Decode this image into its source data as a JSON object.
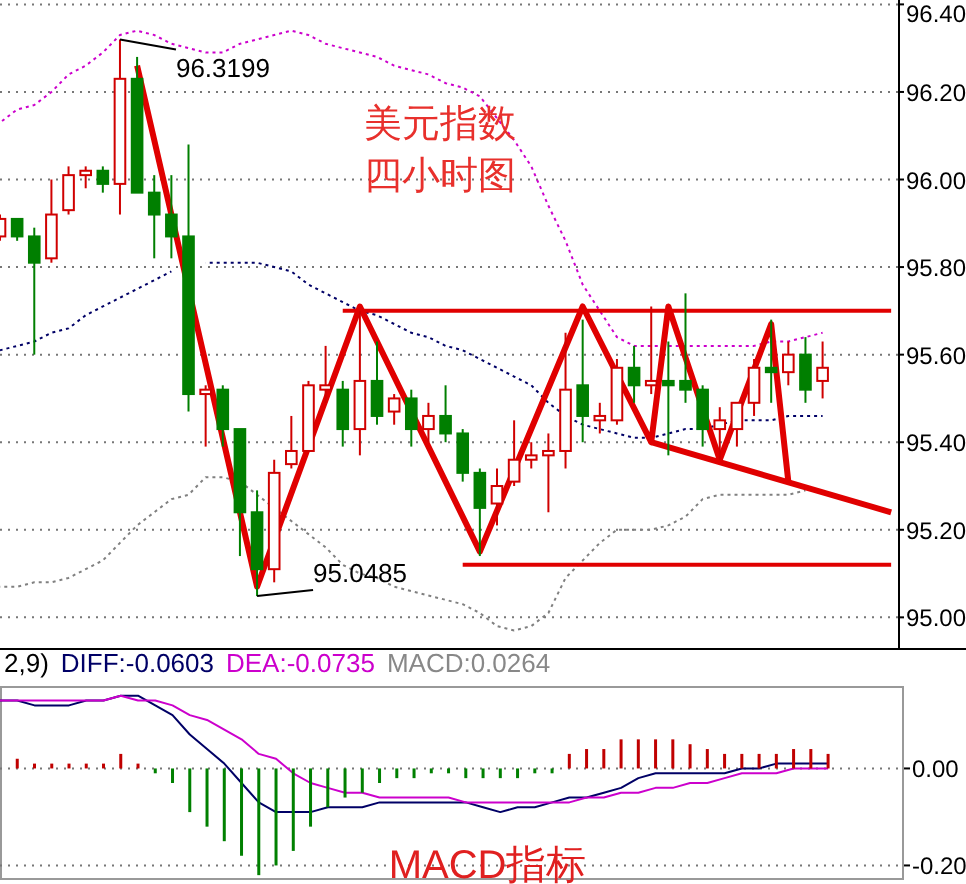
{
  "chart_data": [
    {
      "type": "candlestick",
      "categories": [
        null,
        null,
        null,
        null,
        null,
        null,
        null,
        null,
        null,
        null,
        null,
        null,
        null,
        null,
        null,
        null,
        null,
        null,
        null,
        null,
        null,
        null,
        null,
        null,
        null,
        null,
        null,
        null,
        null,
        null,
        null,
        null,
        null,
        null,
        null,
        null,
        null,
        null,
        null,
        null,
        null,
        null,
        null,
        null,
        null,
        null,
        null,
        null,
        null,
        null,
        null,
        null,
        null
      ],
      "ohlc": [
        [
          95.87,
          95.92,
          95.86,
          95.91
        ],
        [
          95.91,
          95.91,
          95.86,
          95.87
        ],
        [
          95.87,
          95.89,
          95.6,
          95.81
        ],
        [
          95.82,
          96.0,
          95.81,
          95.92
        ],
        [
          95.93,
          96.03,
          95.92,
          96.01
        ],
        [
          96.01,
          96.03,
          95.98,
          96.02
        ],
        [
          96.02,
          96.03,
          95.97,
          95.99
        ],
        [
          95.99,
          96.3199,
          95.92,
          96.23
        ],
        [
          96.23,
          96.28,
          95.97,
          95.97
        ],
        [
          95.97,
          96.01,
          95.82,
          95.92
        ],
        [
          95.92,
          96.01,
          95.82,
          95.87
        ],
        [
          95.87,
          96.08,
          95.47,
          95.51
        ],
        [
          95.51,
          95.53,
          95.39,
          95.52
        ],
        [
          95.52,
          95.53,
          95.39,
          95.43
        ],
        [
          95.43,
          95.43,
          95.14,
          95.24
        ],
        [
          95.24,
          95.29,
          95.0485,
          95.11
        ],
        [
          95.11,
          95.36,
          95.08,
          95.33
        ],
        [
          95.35,
          95.46,
          95.34,
          95.38
        ],
        [
          95.38,
          95.54,
          95.38,
          95.53
        ],
        [
          95.52,
          95.62,
          95.49,
          95.53
        ],
        [
          95.52,
          95.54,
          95.39,
          95.43
        ],
        [
          95.43,
          95.7,
          95.37,
          95.54
        ],
        [
          95.54,
          95.63,
          95.44,
          95.46
        ],
        [
          95.47,
          95.51,
          95.44,
          95.5
        ],
        [
          95.5,
          95.52,
          95.39,
          95.43
        ],
        [
          95.43,
          95.49,
          95.4,
          95.46
        ],
        [
          95.46,
          95.53,
          95.4,
          95.42
        ],
        [
          95.42,
          95.43,
          95.31,
          95.33
        ],
        [
          95.33,
          95.34,
          95.14,
          95.25
        ],
        [
          95.26,
          95.34,
          95.21,
          95.3
        ],
        [
          95.31,
          95.45,
          95.3,
          95.36
        ],
        [
          95.36,
          95.4,
          95.34,
          95.37
        ],
        [
          95.37,
          95.42,
          95.24,
          95.38
        ],
        [
          95.38,
          95.65,
          95.34,
          95.52
        ],
        [
          95.53,
          95.68,
          95.4,
          95.46
        ],
        [
          95.45,
          95.49,
          95.42,
          95.46
        ],
        [
          95.45,
          95.59,
          95.44,
          95.57
        ],
        [
          95.57,
          95.62,
          95.49,
          95.53
        ],
        [
          95.53,
          95.71,
          95.51,
          95.54
        ],
        [
          95.54,
          95.63,
          95.37,
          95.53
        ],
        [
          95.54,
          95.74,
          95.49,
          95.52
        ],
        [
          95.52,
          95.53,
          95.39,
          95.43
        ],
        [
          95.43,
          95.48,
          95.36,
          95.45
        ],
        [
          95.43,
          95.49,
          95.39,
          95.49
        ],
        [
          95.49,
          95.59,
          95.46,
          95.57
        ],
        [
          95.57,
          95.68,
          95.49,
          95.56
        ],
        [
          95.56,
          95.63,
          95.53,
          95.6
        ],
        [
          95.6,
          95.64,
          95.49,
          95.52
        ],
        [
          95.54,
          95.63,
          95.5,
          95.57
        ],
        null,
        null,
        null,
        null
      ],
      "colors": [
        "#d00000",
        "#007f00",
        "#007f00",
        "#d00000",
        "#d00000",
        "#d00000",
        "#007f00",
        "#d00000",
        "#007f00",
        "#007f00",
        "#007f00",
        "#007f00",
        "#d00000",
        "#007f00",
        "#007f00",
        "#007f00",
        "#d00000",
        "#d00000",
        "#d00000",
        "#d00000",
        "#007f00",
        "#d00000",
        "#007f00",
        "#d00000",
        "#007f00",
        "#d00000",
        "#007f00",
        "#007f00",
        "#007f00",
        "#d00000",
        "#d00000",
        "#d00000",
        "#d00000",
        "#d00000",
        "#007f00",
        "#d00000",
        "#d00000",
        "#007f00",
        "#d00000",
        "#007f00",
        "#007f00",
        "#007f00",
        "#d00000",
        "#d00000",
        "#d00000",
        "#007f00",
        "#d00000",
        "#007f00",
        "#d00000",
        null,
        null,
        null,
        null
      ],
      "series": [
        {
          "type": "line",
          "color": "#cc00cc",
          "line_style": "dotted",
          "values": [
            96.13,
            96.16,
            96.17,
            96.2,
            96.24,
            96.26,
            96.29,
            96.33,
            96.34,
            96.33,
            96.31,
            96.3,
            96.29,
            96.29,
            96.31,
            96.32,
            96.33,
            96.34,
            96.33,
            96.31,
            96.3,
            96.29,
            96.28,
            96.26,
            96.25,
            96.24,
            96.22,
            96.21,
            96.19,
            96.14,
            96.09,
            96.03,
            95.94,
            95.86,
            95.76,
            95.7,
            95.64,
            95.62,
            95.62,
            95.62,
            95.62,
            95.62,
            95.62,
            95.62,
            95.62,
            95.63,
            95.63,
            95.64,
            95.65,
            null,
            null,
            null,
            null
          ]
        },
        {
          "type": "line",
          "color": "#000066",
          "line_style": "dotted",
          "values": [
            95.61,
            95.62,
            95.63,
            95.65,
            95.66,
            95.69,
            95.71,
            95.73,
            95.75,
            95.77,
            95.79,
            null,
            95.81,
            95.81,
            95.81,
            95.81,
            95.8,
            95.79,
            95.76,
            95.74,
            95.72,
            95.7,
            95.69,
            95.67,
            95.65,
            95.64,
            95.62,
            95.61,
            95.59,
            95.57,
            95.55,
            95.53,
            95.49,
            95.46,
            95.44,
            95.43,
            95.42,
            95.41,
            95.41,
            95.42,
            95.43,
            95.43,
            95.44,
            95.45,
            95.45,
            95.45,
            95.46,
            95.46,
            95.46,
            null,
            null,
            null,
            null
          ]
        },
        {
          "type": "line",
          "color": "#808080",
          "line_style": "dotted",
          "values": [
            95.07,
            95.07,
            95.08,
            95.08,
            95.09,
            95.11,
            95.13,
            95.17,
            95.21,
            95.24,
            95.27,
            95.28,
            95.32,
            95.32,
            95.31,
            95.28,
            95.25,
            95.22,
            95.19,
            95.16,
            95.12,
            95.1,
            95.09,
            95.07,
            95.06,
            95.05,
            95.04,
            95.03,
            95.01,
            94.98,
            94.97,
            94.98,
            95.01,
            95.09,
            95.13,
            95.17,
            95.2,
            95.2,
            95.2,
            95.21,
            95.23,
            95.27,
            95.28,
            95.28,
            95.28,
            95.28,
            95.28,
            95.29,
            null,
            null,
            null,
            null,
            null
          ]
        },
        {
          "type": "line",
          "color": "#e00000",
          "line_style": "solid",
          "values": [
            null,
            null,
            null,
            null,
            null,
            null,
            null,
            null,
            null,
            null,
            null,
            null,
            null,
            null,
            null,
            null,
            null,
            null,
            null,
            null,
            95.7,
            95.7,
            95.7,
            95.7,
            95.7,
            95.7,
            95.7,
            95.7,
            95.7,
            95.7,
            95.7,
            95.7,
            95.7,
            95.7,
            95.7,
            95.7,
            95.7,
            95.7,
            95.7,
            95.7,
            95.7,
            95.7,
            95.7,
            95.7,
            95.7,
            95.7,
            95.7,
            95.7,
            95.7,
            95.7,
            95.7,
            95.7,
            95.7
          ]
        },
        {
          "type": "line",
          "color": "#e00000",
          "line_style": "solid",
          "values": [
            null,
            null,
            null,
            null,
            null,
            null,
            null,
            null,
            null,
            null,
            null,
            null,
            null,
            null,
            null,
            null,
            null,
            null,
            null,
            null,
            null,
            null,
            null,
            null,
            null,
            null,
            null,
            95.12,
            95.12,
            95.12,
            95.12,
            95.12,
            95.12,
            95.12,
            95.12,
            95.12,
            95.12,
            95.12,
            95.12,
            95.12,
            95.12,
            95.12,
            95.12,
            95.12,
            95.12,
            95.12,
            95.12,
            95.12,
            95.12,
            95.12,
            95.12,
            95.12,
            95.12
          ]
        },
        {
          "type": "line",
          "color": "#e00000",
          "line_style": "solid",
          "values": [
            null,
            null,
            null,
            null,
            null,
            null,
            null,
            null,
            96.26,
            null,
            null,
            null,
            null,
            null,
            null,
            95.07,
            null,
            null,
            null,
            null,
            null,
            95.71,
            null,
            null,
            null,
            null,
            null,
            null,
            95.15,
            null,
            null,
            null,
            null,
            null,
            95.71,
            null,
            null,
            null,
            95.4,
            95.71,
            null,
            null,
            95.36,
            null,
            null,
            95.67,
            95.31,
            null,
            null,
            null,
            null,
            null,
            null
          ]
        },
        {
          "type": "line",
          "color": "#e00000",
          "line_style": "solid",
          "values": [
            null,
            null,
            null,
            null,
            null,
            null,
            null,
            null,
            null,
            null,
            null,
            null,
            null,
            null,
            null,
            null,
            null,
            null,
            null,
            null,
            null,
            null,
            null,
            null,
            null,
            null,
            null,
            null,
            null,
            null,
            null,
            null,
            null,
            null,
            null,
            null,
            null,
            null,
            95.4,
            null,
            null,
            null,
            null,
            null,
            null,
            null,
            null,
            null,
            null,
            null,
            null,
            null,
            95.24
          ]
        }
      ],
      "annotations": [
        "96.3199",
        "95.0485",
        "美元指数",
        "四小时图"
      ],
      "ylim": [
        94.93,
        96.41
      ],
      "yticks": [
        {
          "value": 95,
          "label": "95.00"
        },
        {
          "value": 95.2,
          "label": "95.20"
        },
        {
          "value": 95.4,
          "label": "95.40"
        },
        {
          "value": 95.6,
          "label": "95.60"
        },
        {
          "value": 95.8,
          "label": "95.80"
        },
        {
          "value": 96,
          "label": "96.00"
        },
        {
          "value": 96.2,
          "label": "96.20"
        },
        {
          "value": 96.4,
          "label": "96.40"
        }
      ],
      "grid": "y",
      "tick_labels": "y"
    },
    {
      "type": "bar",
      "categories": [
        null,
        null,
        null,
        null,
        null,
        null,
        null,
        null,
        null,
        null,
        null,
        null,
        null,
        null,
        null,
        null,
        null,
        null,
        null,
        null,
        null,
        null,
        null,
        null,
        null,
        null,
        null,
        null,
        null,
        null,
        null,
        null,
        null,
        null,
        null,
        null,
        null,
        null,
        null,
        null,
        null,
        null,
        null,
        null,
        null,
        null,
        null,
        null,
        null,
        null,
        null,
        null,
        null
      ],
      "values": [
        null,
        0.02,
        0.01,
        0.01,
        0.01,
        0.01,
        0.01,
        0.03,
        0.01,
        -0.01,
        -0.03,
        -0.09,
        -0.12,
        -0.15,
        -0.18,
        -0.22,
        -0.2,
        -0.17,
        -0.12,
        -0.08,
        -0.06,
        -0.05,
        -0.03,
        -0.02,
        -0.02,
        -0.01,
        -0.01,
        -0.02,
        -0.02,
        -0.02,
        -0.02,
        -0.01,
        -0.01,
        0.03,
        0.04,
        0.04,
        0.06,
        0.06,
        0.06,
        0.06,
        0.05,
        0.04,
        0.03,
        0.03,
        0.03,
        0.03,
        0.04,
        0.04,
        0.03,
        null,
        null,
        null,
        null
      ],
      "colors": [
        null,
        "#c00000",
        "#c00000",
        "#c00000",
        "#c00000",
        "#c00000",
        "#c00000",
        "#c00000",
        "#c00000",
        "#008000",
        "#008000",
        "#008000",
        "#008000",
        "#008000",
        "#008000",
        "#008000",
        "#008000",
        "#008000",
        "#008000",
        "#008000",
        "#008000",
        "#008000",
        "#008000",
        "#008000",
        "#008000",
        "#008000",
        "#008000",
        "#008000",
        "#008000",
        "#008000",
        "#008000",
        "#008000",
        "#008000",
        "#c00000",
        "#c00000",
        "#c00000",
        "#c00000",
        "#c00000",
        "#c00000",
        "#c00000",
        "#c00000",
        "#c00000",
        "#c00000",
        "#c00000",
        "#c00000",
        "#c00000",
        "#c00000",
        "#c00000",
        "#c00000",
        null,
        null,
        null,
        null
      ],
      "series": [
        {
          "type": "line",
          "name": "DIFF:-0.0603",
          "color": "#000066",
          "values": [
            0.14,
            0.14,
            0.13,
            0.13,
            0.13,
            0.14,
            0.14,
            0.15,
            0.15,
            0.13,
            0.11,
            0.07,
            0.04,
            0.01,
            -0.03,
            -0.07,
            -0.09,
            -0.09,
            -0.09,
            -0.08,
            -0.08,
            -0.08,
            -0.07,
            -0.07,
            -0.07,
            -0.07,
            -0.07,
            -0.07,
            -0.08,
            -0.09,
            -0.08,
            -0.08,
            -0.07,
            -0.06,
            -0.06,
            -0.05,
            -0.04,
            -0.02,
            -0.01,
            -0.01,
            -0.01,
            -0.01,
            -0.01,
            0,
            0,
            0.01,
            0.01,
            0.01,
            0.01,
            null,
            null,
            null,
            null
          ]
        },
        {
          "type": "line",
          "name": "DEA:-0.0735",
          "color": "#cc00cc",
          "values": [
            0.14,
            0.14,
            0.14,
            0.14,
            0.14,
            0.14,
            0.14,
            0.15,
            0.14,
            0.14,
            0.13,
            0.11,
            0.1,
            0.08,
            0.06,
            0.03,
            0.02,
            -0.01,
            -0.03,
            -0.04,
            -0.05,
            -0.05,
            -0.06,
            -0.06,
            -0.06,
            -0.06,
            -0.06,
            -0.07,
            -0.07,
            -0.07,
            -0.07,
            -0.07,
            -0.07,
            -0.07,
            -0.06,
            -0.06,
            -0.05,
            -0.05,
            -0.04,
            -0.04,
            -0.03,
            -0.03,
            -0.02,
            -0.01,
            -0.01,
            -0.01,
            0,
            0,
            0,
            null,
            null,
            null,
            null
          ]
        }
      ],
      "annotations": [
        "2,9)",
        "MACD:0.0264",
        "MACD指标"
      ],
      "ylim": [
        -0.23,
        0.17
      ],
      "yticks": [
        {
          "value": 0,
          "label": "0.00"
        },
        {
          "value": -0.2,
          "label": "-0.20"
        }
      ],
      "grid": "y",
      "tick_labels": "y",
      "legend": "top left"
    }
  ]
}
